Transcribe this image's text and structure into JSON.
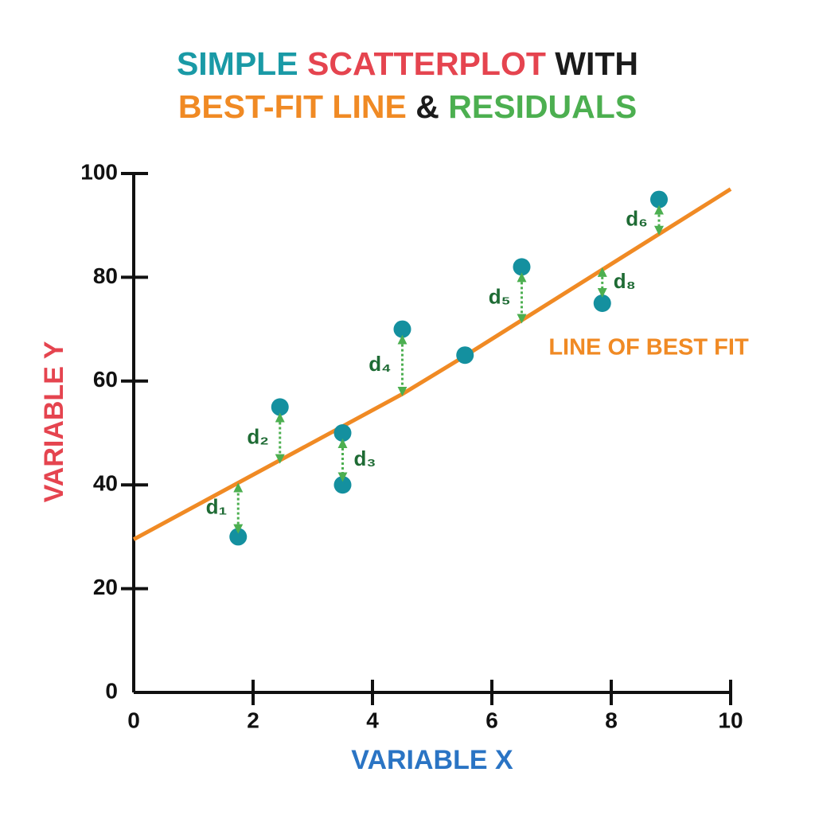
{
  "chart_data": {
    "type": "scatter",
    "title": [
      [
        {
          "text": "SIMPLE",
          "color": "#1a9aa6"
        },
        {
          "text": "SCATTERPLOT",
          "color": "#e5444f"
        },
        {
          "text": "WITH",
          "color": "#1b1b1b"
        }
      ],
      [
        {
          "text": "BEST-FIT LINE",
          "color": "#f08a24"
        },
        {
          "text": "&",
          "color": "#1b1b1b"
        },
        {
          "text": "RESIDUALS",
          "color": "#4caf50"
        }
      ]
    ],
    "x_label": "VARIABLE X",
    "y_label": "VARIABLE Y",
    "xlim": [
      0,
      10
    ],
    "ylim": [
      0,
      100
    ],
    "xticks": [
      0,
      2,
      4,
      6,
      8,
      10
    ],
    "yticks": [
      0,
      20,
      40,
      60,
      80,
      100
    ],
    "series": [
      {
        "type": "scatter",
        "color": "#14909f",
        "x": [
          1.75,
          2.45,
          3.5,
          3.5,
          4.5,
          5.55,
          6.5,
          7.85,
          8.8
        ],
        "values": [
          30,
          55,
          50,
          40,
          70,
          65,
          82,
          75,
          95
        ]
      },
      {
        "type": "line",
        "name": "LINE OF BEST FIT",
        "color": "#f08a24",
        "x": [
          0,
          4.5,
          5.5,
          10
        ],
        "values": [
          29.5,
          57.5,
          64.5,
          97
        ]
      }
    ],
    "residuals": {
      "color": "#4caf50",
      "label_color": "#1e6b34",
      "items": [
        {
          "label": "d₁",
          "x": 1.75,
          "y1": 31.5,
          "y2": 39.5
        },
        {
          "label": "d₂",
          "x": 2.45,
          "y1": 53,
          "y2": 45
        },
        {
          "label": "d₃",
          "x": 3.5,
          "y1": 48,
          "y2": 41.5
        },
        {
          "label": "d₄",
          "x": 4.5,
          "y1": 68,
          "y2": 58
        },
        {
          "label": "d₅",
          "x": 6.5,
          "y1": 80,
          "y2": 72
        },
        {
          "label": "d₆",
          "x": 8.8,
          "y1": 93,
          "y2": 89
        },
        {
          "label": "d₈",
          "x": 7.85,
          "y1": 81,
          "y2": 77
        }
      ]
    }
  }
}
